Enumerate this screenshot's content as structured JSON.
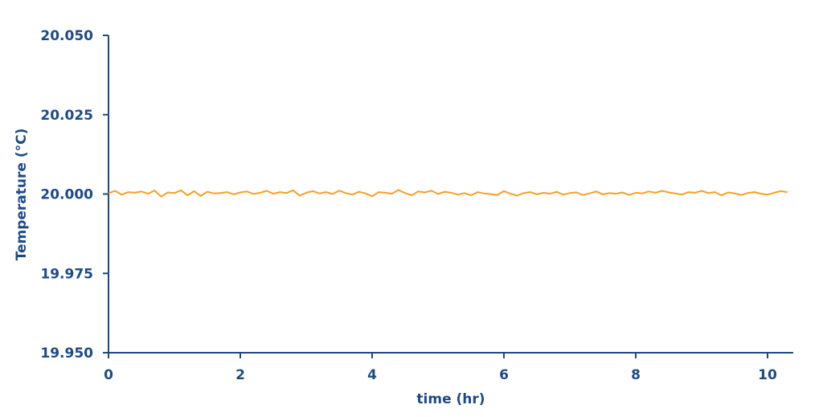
{
  "chart_data": {
    "type": "line",
    "title": "",
    "xlabel": "time (hr)",
    "ylabel": "Temperature (°C)",
    "xlim": [
      0,
      10.4
    ],
    "ylim": [
      19.95,
      20.05
    ],
    "xticks": [
      "0",
      "2",
      "4",
      "6",
      "8",
      "10"
    ],
    "xtick_values": [
      0,
      2,
      4,
      6,
      8,
      10
    ],
    "yticks": [
      "19.950",
      "19.975",
      "20.000",
      "20.025",
      "20.050"
    ],
    "ytick_values": [
      19.95,
      19.975,
      20.0,
      20.025,
      20.05
    ],
    "grid": false,
    "colors": {
      "axis": "#1d4a86",
      "series": "#f7a023"
    },
    "series": [
      {
        "name": "Temperature",
        "x_start": 0,
        "x_step": 0.1,
        "y": [
          20.0002,
          20.001,
          19.9998,
          20.0006,
          20.0004,
          20.0008,
          20.0001,
          20.0011,
          19.9992,
          20.0005,
          20.0003,
          20.0012,
          19.9996,
          20.0009,
          19.9994,
          20.0007,
          20.0002,
          20.0003,
          20.0006,
          19.9999,
          20.0005,
          20.0008,
          20.0,
          20.0004,
          20.001,
          20.0001,
          20.0006,
          20.0003,
          20.0012,
          19.9995,
          20.0004,
          20.0009,
          20.0002,
          20.0006,
          20.0,
          20.0011,
          20.0003,
          19.9998,
          20.0007,
          20.0002,
          19.9993,
          20.0006,
          20.0004,
          20.0001,
          20.0013,
          20.0003,
          19.9996,
          20.0008,
          20.0005,
          20.0011,
          20.0,
          20.0007,
          20.0004,
          19.9998,
          20.0003,
          19.9996,
          20.0006,
          20.0002,
          20.0,
          19.9997,
          20.0009,
          20.0001,
          19.9995,
          20.0003,
          20.0006,
          19.9999,
          20.0004,
          20.0001,
          20.0007,
          19.9998,
          20.0003,
          20.0005,
          19.9997,
          20.0002,
          20.0008,
          19.9999,
          20.0003,
          20.0001,
          20.0005,
          19.9997,
          20.0004,
          20.0002,
          20.0008,
          20.0004,
          20.001,
          20.0005,
          20.0002,
          19.9998,
          20.0006,
          20.0004,
          20.001,
          20.0003,
          20.0006,
          19.9996,
          20.0005,
          20.0002,
          19.9997,
          20.0003,
          20.0006,
          20.0001,
          19.9998,
          20.0004,
          20.0009,
          20.0006
        ]
      }
    ]
  }
}
